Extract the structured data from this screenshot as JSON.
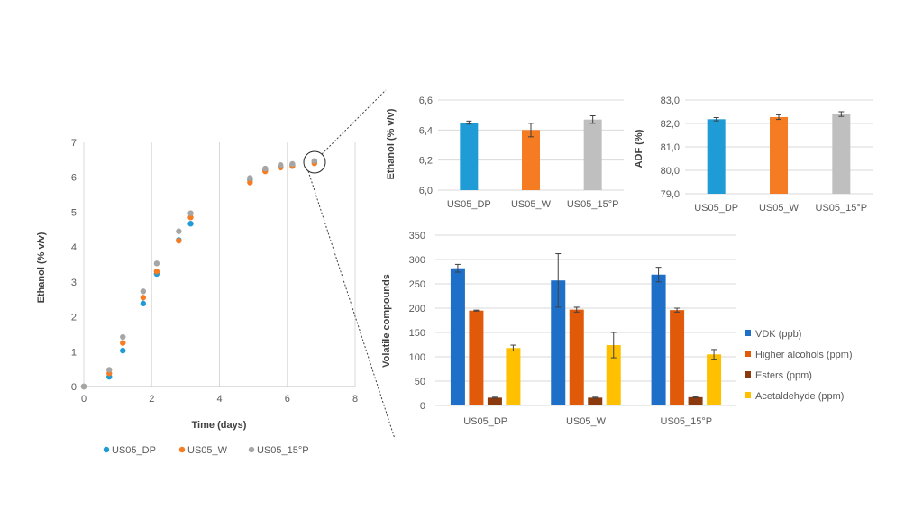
{
  "chart_data": [
    {
      "type": "scatter",
      "title": "",
      "xlabel": "Time (days)",
      "ylabel": "Ethanol (% v/v)",
      "xlim": [
        0,
        8
      ],
      "ylim": [
        0,
        7
      ],
      "xticks": [
        "0",
        "2",
        "4",
        "6",
        "8"
      ],
      "yticks": [
        "0",
        "1",
        "2",
        "3",
        "4",
        "5",
        "6",
        "7"
      ],
      "grid": "vertical",
      "legend": "bottom",
      "series": [
        {
          "name": "US05_DP",
          "color": "#1f9bd5",
          "x": [
            0,
            0.75,
            1.15,
            1.75,
            2.15,
            2.8,
            3.15,
            4.9,
            5.35,
            5.8,
            6.15,
            6.8
          ],
          "y": [
            0,
            0.28,
            1.03,
            2.38,
            3.23,
            4.2,
            4.67,
            5.93,
            6.2,
            6.3,
            6.35,
            6.45
          ]
        },
        {
          "name": "US05_W",
          "color": "#f57c23",
          "x": [
            0,
            0.75,
            1.15,
            1.75,
            2.15,
            2.8,
            3.15,
            4.9,
            5.35,
            5.8,
            6.15,
            6.8
          ],
          "y": [
            0,
            0.38,
            1.25,
            2.55,
            3.3,
            4.18,
            4.85,
            5.85,
            6.17,
            6.28,
            6.32,
            6.4
          ]
        },
        {
          "name": "US05_15°P",
          "color": "#a6a6a6",
          "x": [
            0,
            0.75,
            1.15,
            1.75,
            2.15,
            2.8,
            3.15,
            4.9,
            5.35,
            5.8,
            6.15,
            6.8
          ],
          "y": [
            0,
            0.48,
            1.42,
            2.73,
            3.53,
            4.45,
            4.97,
            5.98,
            6.25,
            6.35,
            6.38,
            6.47
          ]
        }
      ]
    },
    {
      "type": "bar",
      "title": "",
      "xlabel": "",
      "ylabel": "Ethanol (% v/v)",
      "ylim": [
        6.0,
        6.6
      ],
      "yticks": [
        "6,0",
        "6,2",
        "6,4",
        "6,6"
      ],
      "categories": [
        "US05_DP",
        "US05_W",
        "US05_15°P"
      ],
      "values": [
        6.45,
        6.4,
        6.47
      ],
      "errors": [
        0.01,
        0.045,
        0.025
      ],
      "colors": [
        "#1f9bd5",
        "#f57c23",
        "#bfbfbf"
      ]
    },
    {
      "type": "bar",
      "title": "",
      "xlabel": "",
      "ylabel": "ADF (%)",
      "ylim": [
        79.0,
        83.0
      ],
      "yticks": [
        "79,0",
        "80,0",
        "81,0",
        "82,0",
        "83,0"
      ],
      "categories": [
        "US05_DP",
        "US05_W",
        "US05_15°P"
      ],
      "values": [
        82.18,
        82.27,
        82.4
      ],
      "errors": [
        0.07,
        0.1,
        0.1
      ],
      "colors": [
        "#1f9bd5",
        "#f57c23",
        "#bfbfbf"
      ]
    },
    {
      "type": "bar",
      "title": "",
      "xlabel": "",
      "ylabel": "Volatile compounds",
      "ylim": [
        0,
        350
      ],
      "yticks": [
        "0",
        "50",
        "100",
        "150",
        "200",
        "250",
        "300",
        "350"
      ],
      "categories": [
        "US05_DP",
        "US05_W",
        "US05_15°P"
      ],
      "legend": "right",
      "series": [
        {
          "name": "VDK (ppb)",
          "color": "#1e6fc8",
          "values": [
            282,
            257,
            269
          ],
          "errors": [
            8,
            55,
            15
          ]
        },
        {
          "name": "Higher alcohols (ppm)",
          "color": "#e05a0a",
          "values": [
            195,
            197,
            196
          ],
          "errors": [
            1,
            5,
            4
          ]
        },
        {
          "name": "Esters (ppm)",
          "color": "#8b3a0e",
          "values": [
            16,
            16,
            17
          ],
          "errors": [
            1,
            1,
            1
          ]
        },
        {
          "name": "Acetaldehyde (ppm)",
          "color": "#ffc000",
          "values": [
            118,
            124,
            105
          ],
          "errors": [
            6,
            26,
            10
          ]
        }
      ]
    }
  ]
}
